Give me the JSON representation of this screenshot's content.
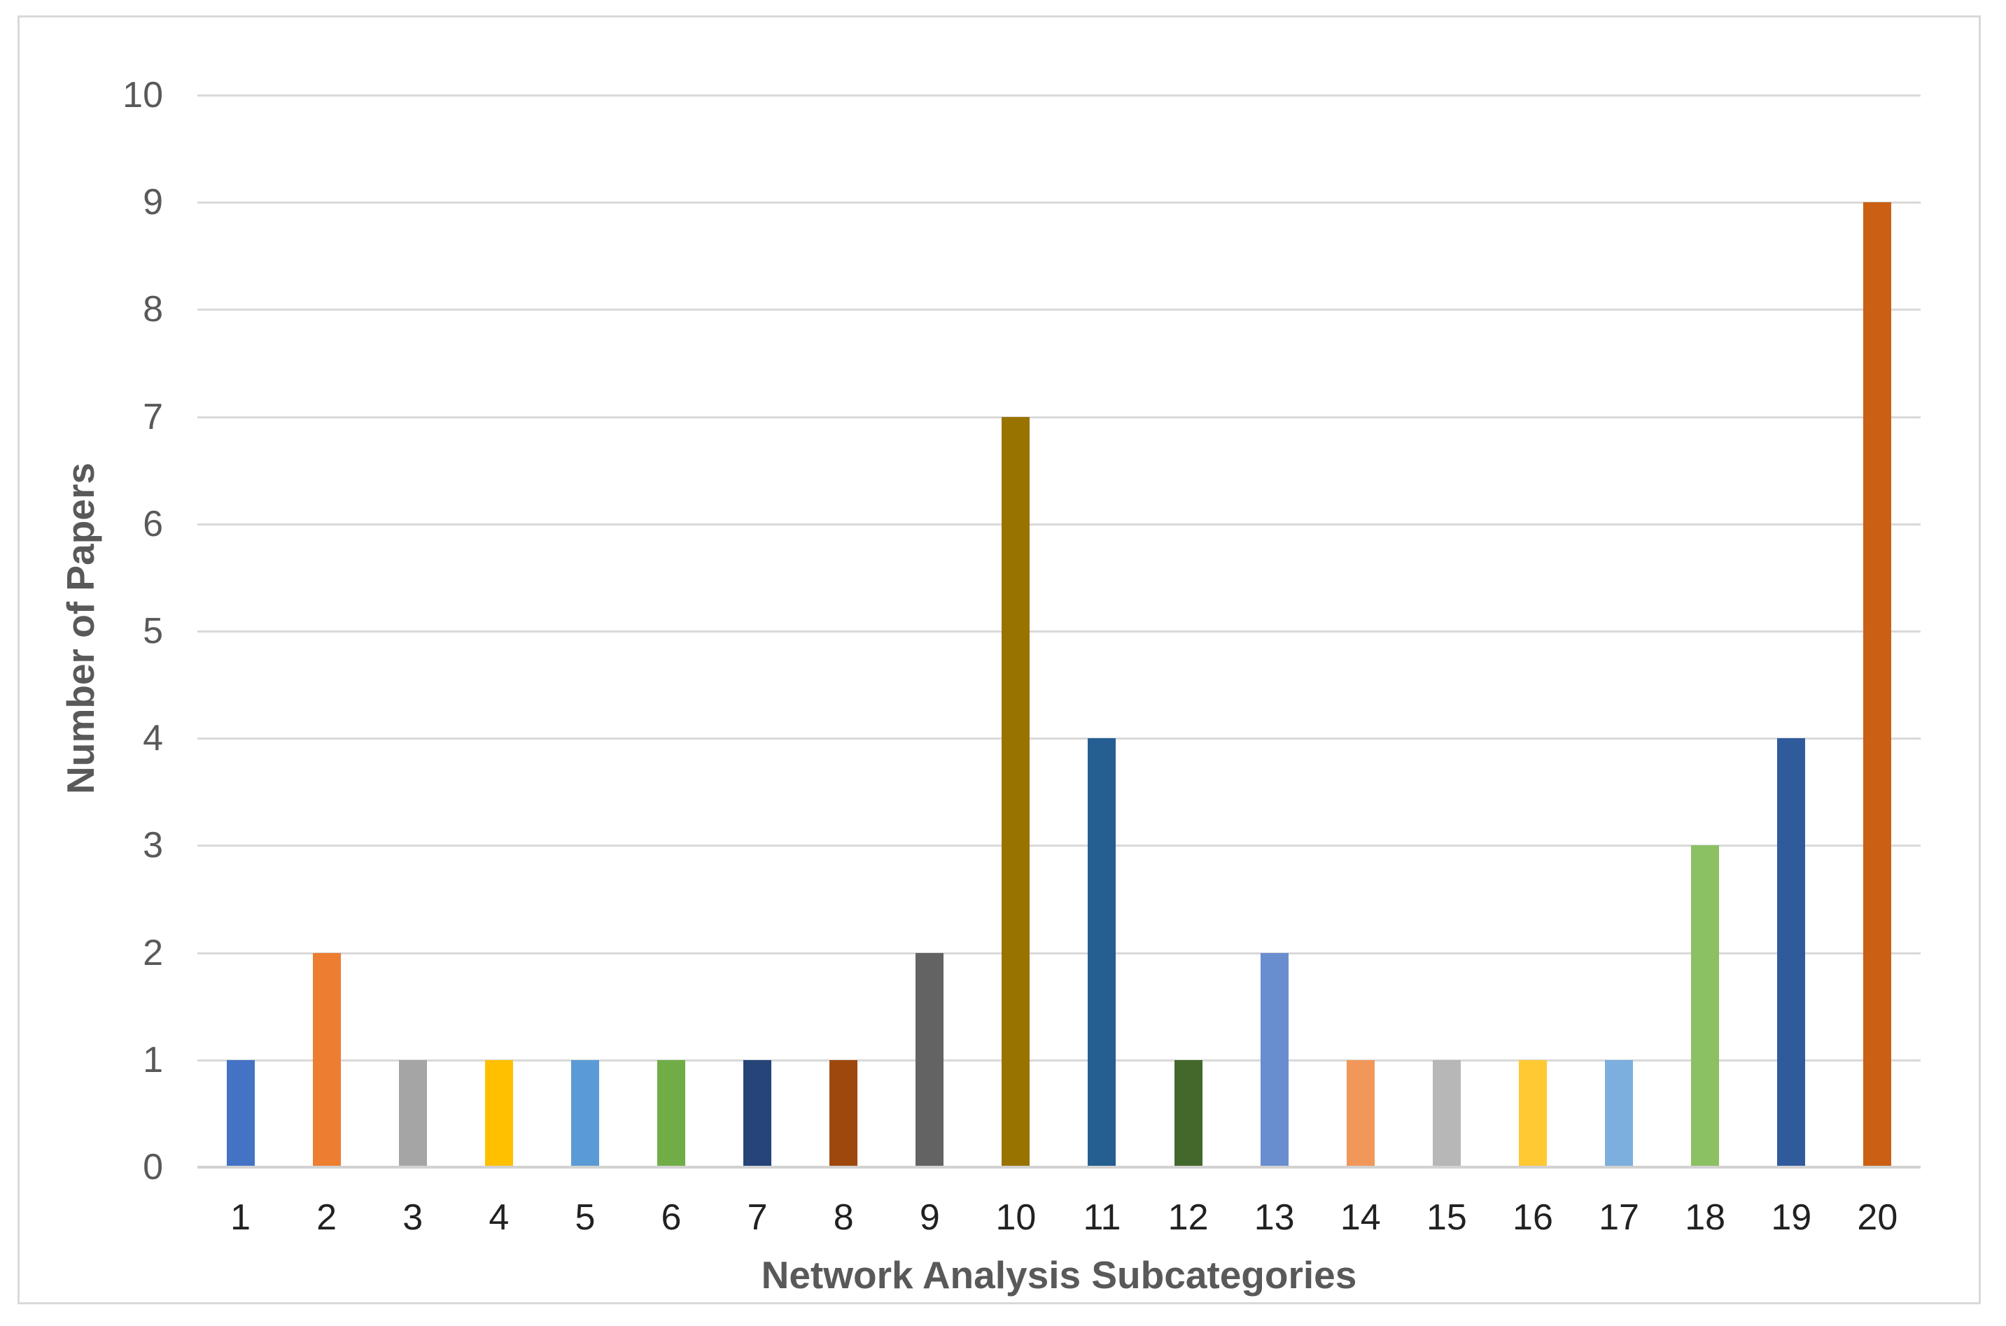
{
  "chart_data": {
    "type": "bar",
    "title": "",
    "xlabel": "Network Analysis Subcategories",
    "ylabel": "Number of Papers",
    "categories": [
      "1",
      "2",
      "3",
      "4",
      "5",
      "6",
      "7",
      "8",
      "9",
      "10",
      "11",
      "12",
      "13",
      "14",
      "15",
      "16",
      "17",
      "18",
      "19",
      "20"
    ],
    "values": [
      1,
      2,
      1,
      1,
      1,
      1,
      1,
      1,
      2,
      7,
      4,
      1,
      2,
      1,
      1,
      1,
      1,
      3,
      4,
      9
    ],
    "bar_colors": [
      "#4472C4",
      "#ED7D31",
      "#A5A5A5",
      "#FFC000",
      "#5B9BD5",
      "#70AD47",
      "#264478",
      "#9E480E",
      "#636363",
      "#997300",
      "#255E91",
      "#43682B",
      "#698ED0",
      "#F1975A",
      "#B7B7B7",
      "#FFC933",
      "#7CAFDD",
      "#8BC063",
      "#2F5B9C",
      "#CB6015"
    ],
    "ylim": [
      0,
      10
    ],
    "yticks": [
      0,
      1,
      2,
      3,
      4,
      5,
      6,
      7,
      8,
      9,
      10
    ],
    "grid": "horizontal",
    "legend": "none",
    "gridline_color": "#D9D9D9",
    "axis_line_color": "#D2D2D2",
    "frame_border_color": "#D9D9D9",
    "y_tick_color": "#595959",
    "x_tick_color": "#212121",
    "axis_title_color": "#595959",
    "background_color": "#FFFFFF"
  }
}
